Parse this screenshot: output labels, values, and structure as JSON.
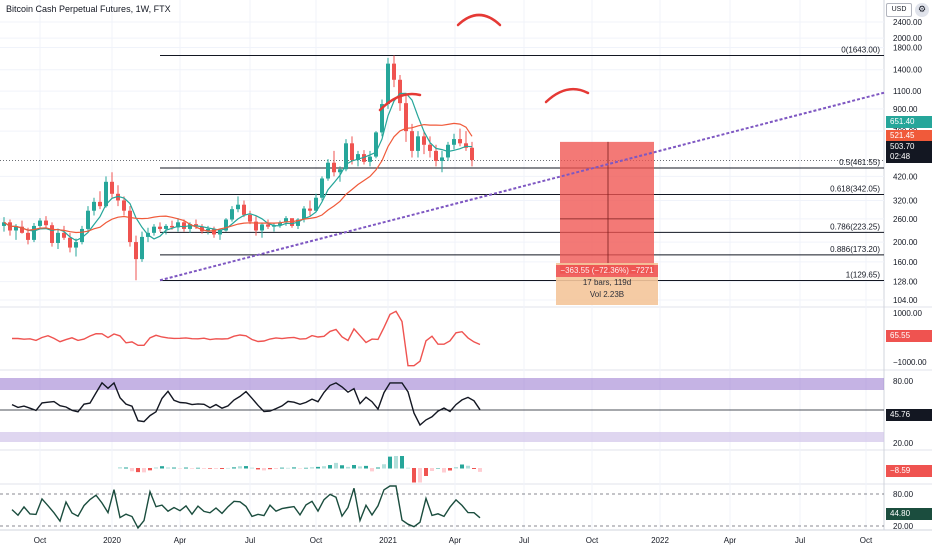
{
  "header": {
    "title": "Bitcoin Cash Perpetual Futures, 1W, FTX",
    "currency": "USD"
  },
  "price_axis": {
    "ticks": [
      "2400.00",
      "2000.00",
      "1800.00",
      "1400.00",
      "1100.00",
      "900.00",
      "700.00",
      "420.00",
      "320.00",
      "260.00",
      "200.00",
      "160.00",
      "128.00",
      "104.00"
    ],
    "tags": {
      "ma_fast": "651.40",
      "ma_slow": "521.45",
      "last_price": "503.70",
      "countdown": "02:48"
    }
  },
  "fib_levels": [
    {
      "label": "0(1643.00)"
    },
    {
      "label": "0.5(461.55)"
    },
    {
      "label": "0.618(342.05)"
    },
    {
      "label": "0.786(223.25)"
    },
    {
      "label": "0.886(173.20)"
    },
    {
      "label": "1(129.65)"
    }
  ],
  "measure": {
    "change": "−363.55 (−72.36%) −7271",
    "bars": "17 bars, 119d",
    "volume": "Vol 2.23B"
  },
  "pane1": {
    "ticks": [
      "1000.00",
      "−1000.00"
    ],
    "value": "65.55"
  },
  "pane2": {
    "ticks": [
      "80.00",
      "20.00"
    ],
    "value": "45.76"
  },
  "pane3": {
    "value": "−8.59"
  },
  "pane4": {
    "ticks": [
      "80.00",
      "20.00"
    ],
    "value": "44.80"
  },
  "time_axis": [
    "Oct",
    "2020",
    "Apr",
    "Jul",
    "Oct",
    "2021",
    "Apr",
    "Jul",
    "Oct",
    "2022",
    "Apr",
    "Jul",
    "Oct"
  ],
  "colors": {
    "up": "#26a69a",
    "down": "#ef5350",
    "ma_teal": "#26a69a",
    "ma_red": "#f05a3a",
    "trendline": "#7e57c2",
    "annotation": "#e53935",
    "measure_fill": "#ef5350",
    "last_price_bg": "#131722"
  },
  "chart_data": {
    "type": "candlestick",
    "title": "Bitcoin Cash Perpetual Futures, 1W, FTX",
    "ohlc": [
      [
        240,
        265,
        225,
        250
      ],
      [
        250,
        258,
        215,
        228
      ],
      [
        228,
        245,
        205,
        238
      ],
      [
        238,
        255,
        220,
        222
      ],
      [
        222,
        235,
        195,
        205
      ],
      [
        205,
        248,
        200,
        240
      ],
      [
        240,
        262,
        232,
        255
      ],
      [
        255,
        268,
        235,
        242
      ],
      [
        242,
        250,
        190,
        198
      ],
      [
        198,
        230,
        185,
        222
      ],
      [
        222,
        240,
        205,
        210
      ],
      [
        210,
        222,
        178,
        188
      ],
      [
        188,
        208,
        170,
        200
      ],
      [
        200,
        240,
        195,
        232
      ],
      [
        232,
        300,
        225,
        285
      ],
      [
        285,
        330,
        270,
        315
      ],
      [
        315,
        355,
        290,
        300
      ],
      [
        300,
        420,
        295,
        395
      ],
      [
        395,
        440,
        330,
        345
      ],
      [
        345,
        380,
        300,
        320
      ],
      [
        320,
        335,
        270,
        285
      ],
      [
        285,
        300,
        190,
        200
      ],
      [
        200,
        215,
        130,
        165
      ],
      [
        165,
        225,
        160,
        212
      ],
      [
        212,
        235,
        200,
        222
      ],
      [
        222,
        245,
        215,
        238
      ],
      [
        238,
        250,
        225,
        232
      ],
      [
        232,
        245,
        218,
        240
      ],
      [
        240,
        255,
        230,
        236
      ],
      [
        236,
        262,
        225,
        250
      ],
      [
        250,
        258,
        225,
        232
      ],
      [
        232,
        250,
        222,
        245
      ],
      [
        245,
        258,
        232,
        238
      ],
      [
        238,
        245,
        220,
        226
      ],
      [
        226,
        240,
        218,
        232
      ],
      [
        232,
        238,
        210,
        218
      ],
      [
        218,
        232,
        205,
        228
      ],
      [
        228,
        262,
        225,
        258
      ],
      [
        258,
        300,
        252,
        290
      ],
      [
        290,
        335,
        280,
        305
      ],
      [
        305,
        320,
        265,
        272
      ],
      [
        272,
        285,
        245,
        252
      ],
      [
        252,
        268,
        215,
        228
      ],
      [
        228,
        250,
        210,
        244
      ],
      [
        244,
        258,
        232,
        238
      ],
      [
        238,
        248,
        225,
        242
      ],
      [
        242,
        255,
        235,
        250
      ],
      [
        250,
        268,
        240,
        262
      ],
      [
        262,
        258,
        235,
        240
      ],
      [
        240,
        262,
        232,
        258
      ],
      [
        258,
        300,
        250,
        292
      ],
      [
        292,
        320,
        270,
        285
      ],
      [
        285,
        345,
        280,
        330
      ],
      [
        330,
        420,
        320,
        410
      ],
      [
        410,
        510,
        400,
        490
      ],
      [
        490,
        560,
        420,
        440
      ],
      [
        440,
        470,
        395,
        455
      ],
      [
        455,
        640,
        445,
        610
      ],
      [
        610,
        660,
        480,
        505
      ],
      [
        505,
        560,
        470,
        540
      ],
      [
        540,
        565,
        480,
        495
      ],
      [
        495,
        560,
        470,
        525
      ],
      [
        525,
        700,
        515,
        690
      ],
      [
        690,
        1000,
        660,
        950
      ],
      [
        950,
        1600,
        900,
        1500
      ],
      [
        1500,
        1643,
        1150,
        1250
      ],
      [
        1250,
        1320,
        880,
        960
      ],
      [
        960,
        1050,
        620,
        700
      ],
      [
        700,
        760,
        520,
        560
      ],
      [
        560,
        700,
        520,
        660
      ],
      [
        660,
        700,
        540,
        600
      ],
      [
        600,
        660,
        520,
        560
      ],
      [
        560,
        600,
        470,
        500
      ],
      [
        500,
        560,
        440,
        520
      ],
      [
        520,
        620,
        500,
        600
      ],
      [
        600,
        680,
        570,
        640
      ],
      [
        640,
        720,
        590,
        610
      ],
      [
        610,
        700,
        560,
        580
      ],
      [
        580,
        620,
        470,
        505
      ]
    ]
  }
}
